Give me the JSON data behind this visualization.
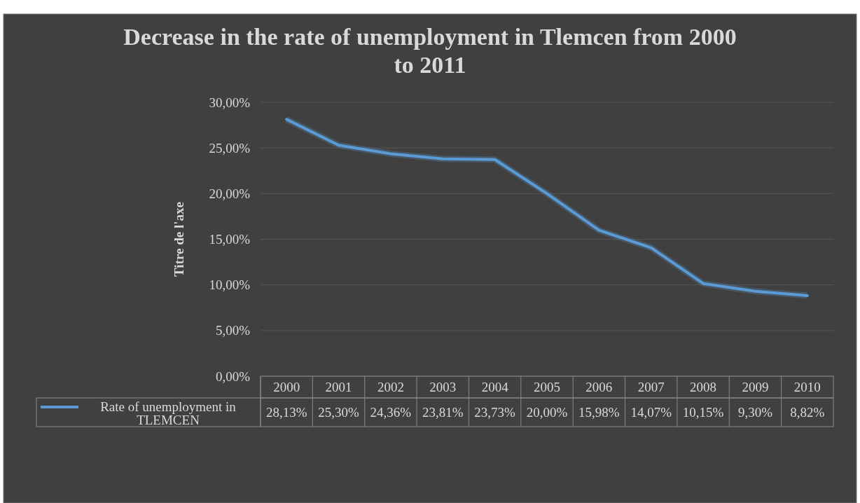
{
  "chart_data": {
    "type": "line",
    "title": "Decrease in the rate of unemployment in Tlemcen from 2000 to 2011",
    "ylabel": "Titre de l'axe",
    "categories": [
      "2000",
      "2001",
      "2002",
      "2003",
      "2004",
      "2005",
      "2006",
      "2007",
      "2008",
      "2009",
      "2010"
    ],
    "series": [
      {
        "name": "Rate of unemployment in TLEMCEN",
        "color": "#5b9bd5",
        "values": [
          28.13,
          25.3,
          24.36,
          23.81,
          23.73,
          20.0,
          15.98,
          14.07,
          10.15,
          9.3,
          8.82
        ],
        "value_labels": [
          "28,13%",
          "25,30%",
          "24,36%",
          "23,81%",
          "23,73%",
          "20,00%",
          "15,98%",
          "14,07%",
          "10,15%",
          "9,30%",
          "8,82%"
        ]
      }
    ],
    "ylim": [
      0,
      30
    ],
    "yticks": [
      {
        "value": 0,
        "label": "0,00%"
      },
      {
        "value": 5,
        "label": "5,00%"
      },
      {
        "value": 10,
        "label": "10,00%"
      },
      {
        "value": 15,
        "label": "15,00%"
      },
      {
        "value": 20,
        "label": "20,00%"
      },
      {
        "value": 25,
        "label": "25,00%"
      },
      {
        "value": 30,
        "label": "30,00%"
      }
    ],
    "grid": "y",
    "legend": "bottom",
    "marker": "none",
    "line_style": "solid"
  }
}
